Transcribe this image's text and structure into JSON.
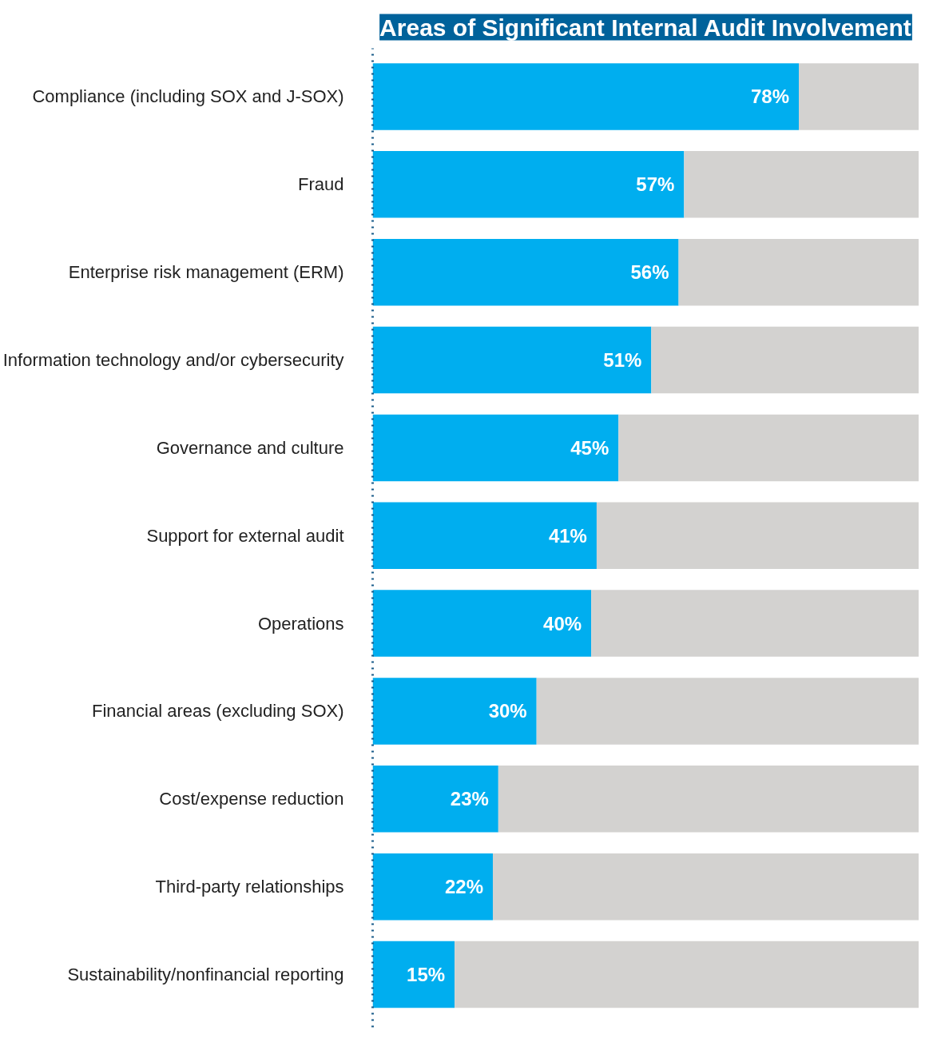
{
  "chart_data": {
    "type": "bar",
    "orientation": "horizontal",
    "stacked": true,
    "title": "Areas of Significant Internal Audit Involvement",
    "categories": [
      "Compliance (including SOX and J-SOX)",
      "Fraud",
      "Enterprise risk management (ERM)",
      "Information technology and/or cybersecurity",
      "Governance and culture",
      "Support for external audit",
      "Operations",
      "Financial areas (excluding SOX)",
      "Cost/expense reduction",
      "Third-party relationships",
      "Sustainability/nonfinancial reporting"
    ],
    "series": [
      {
        "color": "#00aeef",
        "values": [
          78,
          57,
          56,
          51,
          45,
          41,
          40,
          30,
          23,
          22,
          15
        ],
        "value_labels": [
          "78%",
          "57%",
          "56%",
          "51%",
          "45%",
          "41%",
          "40%",
          "30%",
          "23%",
          "22%",
          "15%"
        ]
      },
      {
        "color": "#d3d2d0",
        "values": [
          22,
          43,
          44,
          49,
          55,
          59,
          60,
          70,
          77,
          78,
          85
        ]
      }
    ],
    "xlim": [
      0,
      100
    ],
    "tick_labels": "y",
    "grid": false
  }
}
